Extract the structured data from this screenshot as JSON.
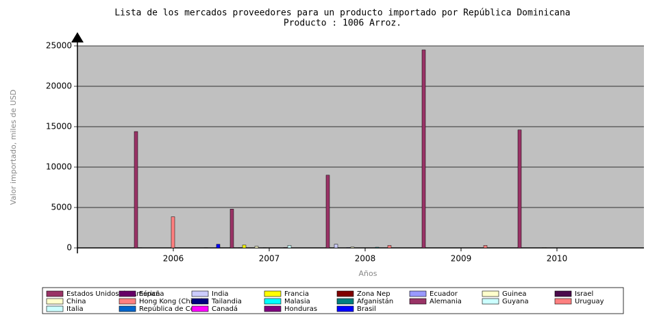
{
  "chart_data": {
    "type": "bar",
    "title": "Lista de los mercados proveedores para un producto importado por República Dominicana",
    "subtitle": "Producto : 1006 Arroz.",
    "x_label": "Años",
    "y_label": "Valor importado, miles de USD",
    "categories": [
      "2006",
      "2007",
      "2008",
      "2009",
      "2010"
    ],
    "ylim": [
      0,
      25000
    ],
    "yticks": [
      0,
      5000,
      10000,
      15000,
      20000,
      25000
    ],
    "grid": true,
    "series": [
      {
        "name": "Estados Unidos de América",
        "color": "#993366",
        "values": [
          14400,
          4800,
          9000,
          24500,
          14600
        ]
      },
      {
        "name": "España",
        "color": "#660066",
        "values": [
          30,
          0,
          20,
          0,
          20
        ]
      },
      {
        "name": "India",
        "color": "#ccccff",
        "values": [
          0,
          30,
          450,
          0,
          0
        ]
      },
      {
        "name": "Francia",
        "color": "#ffff00",
        "values": [
          0,
          350,
          0,
          0,
          0
        ]
      },
      {
        "name": "Zona Nep",
        "color": "#800000",
        "values": [
          20,
          0,
          0,
          20,
          0
        ]
      },
      {
        "name": "Ecuador",
        "color": "#9999ff",
        "values": [
          0,
          0,
          50,
          0,
          0
        ]
      },
      {
        "name": "Guinea",
        "color": "#ffffcc",
        "values": [
          0,
          200,
          100,
          0,
          50
        ]
      },
      {
        "name": "Israel",
        "color": "#4b0b4b",
        "values": [
          20,
          0,
          0,
          20,
          20
        ]
      },
      {
        "name": "China",
        "color": "#ffffcc",
        "values": [
          0,
          30,
          0,
          0,
          0
        ]
      },
      {
        "name": "Hong Kong (China)",
        "color": "#ff8080",
        "values": [
          3850,
          0,
          0,
          0,
          0
        ]
      },
      {
        "name": "Tailandia",
        "color": "#000080",
        "values": [
          20,
          0,
          0,
          0,
          20
        ]
      },
      {
        "name": "Malasia",
        "color": "#00ffff",
        "values": [
          0,
          0,
          0,
          0,
          0
        ]
      },
      {
        "name": "Afganistán",
        "color": "#008080",
        "values": [
          0,
          0,
          80,
          0,
          0
        ]
      },
      {
        "name": "Alemania",
        "color": "#993366",
        "values": [
          0,
          50,
          0,
          20,
          0
        ]
      },
      {
        "name": "Guyana",
        "color": "#ccffff",
        "values": [
          0,
          300,
          0,
          0,
          0
        ]
      },
      {
        "name": "Uruguay",
        "color": "#ff8080",
        "values": [
          0,
          0,
          300,
          300,
          0
        ]
      },
      {
        "name": "Italia",
        "color": "#ccffff",
        "values": [
          0,
          0,
          0,
          0,
          0
        ]
      },
      {
        "name": "República de Corea",
        "color": "#0066cc",
        "values": [
          30,
          0,
          0,
          0,
          0
        ]
      },
      {
        "name": "Canadá",
        "color": "#ff00ff",
        "values": [
          0,
          0,
          0,
          0,
          0
        ]
      },
      {
        "name": "Honduras",
        "color": "#800080",
        "values": [
          0,
          0,
          0,
          20,
          0
        ]
      },
      {
        "name": "Brasil",
        "color": "#0000ff",
        "values": [
          450,
          0,
          0,
          0,
          0
        ]
      }
    ]
  }
}
